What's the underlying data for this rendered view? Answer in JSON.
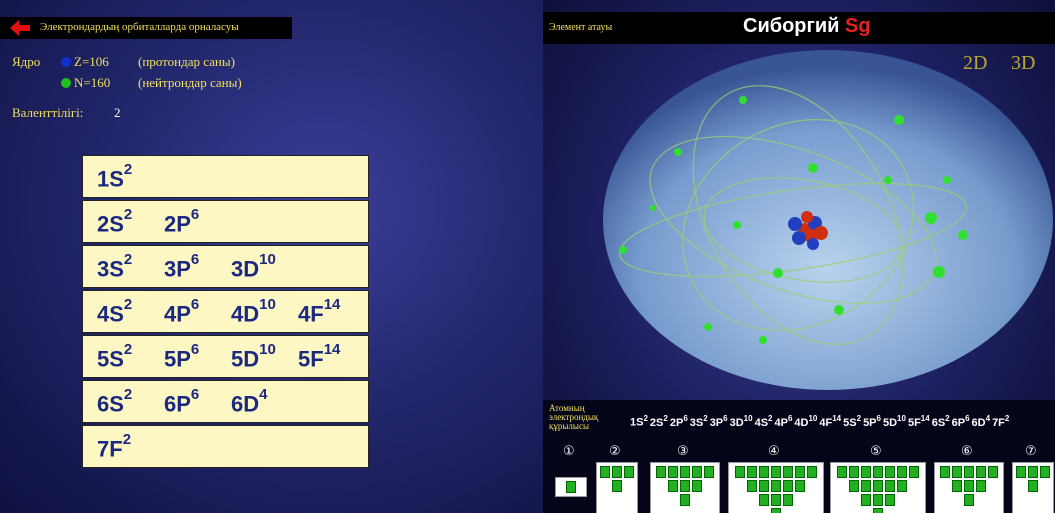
{
  "header": {
    "back_title": "Электрондардың орбиталларда орналасуы"
  },
  "nucleus": {
    "label": "Ядро",
    "protons": "Z=106",
    "protons_note": "(протондар саны)",
    "neutrons": "N=160",
    "neutrons_note": "(нейтрондар саны)"
  },
  "valence": {
    "label": "Валенттілігі:",
    "value": "2"
  },
  "orbitals": [
    [
      {
        "label": "1S",
        "sup": "2"
      }
    ],
    [
      {
        "label": "2S",
        "sup": "2"
      },
      {
        "label": "2P",
        "sup": "6"
      }
    ],
    [
      {
        "label": "3S",
        "sup": "2"
      },
      {
        "label": "3P",
        "sup": "6"
      },
      {
        "label": "3D",
        "sup": "10"
      }
    ],
    [
      {
        "label": "4S",
        "sup": "2"
      },
      {
        "label": "4P",
        "sup": "6"
      },
      {
        "label": "4D",
        "sup": "10"
      },
      {
        "label": "4F",
        "sup": "14"
      }
    ],
    [
      {
        "label": "5S",
        "sup": "2"
      },
      {
        "label": "5P",
        "sup": "6"
      },
      {
        "label": "5D",
        "sup": "10"
      },
      {
        "label": "5F",
        "sup": "14"
      }
    ],
    [
      {
        "label": "6S",
        "sup": "2"
      },
      {
        "label": "6P",
        "sup": "6"
      },
      {
        "label": "6D",
        "sup": "4"
      }
    ],
    [
      {
        "label": "7F",
        "sup": "2"
      }
    ]
  ],
  "element": {
    "caption": "Элемент атауы",
    "name": "Сиборгий",
    "symbol": "Sg"
  },
  "view_buttons": [
    "2D",
    "3D"
  ],
  "structure": {
    "label": "Атомның электрондық құрылысы",
    "config": [
      {
        "label": "1S",
        "sup": "2"
      },
      {
        "label": "2S",
        "sup": "2"
      },
      {
        "label": "2P",
        "sup": "6"
      },
      {
        "label": "3S",
        "sup": "2"
      },
      {
        "label": "3P",
        "sup": "6"
      },
      {
        "label": "3D",
        "sup": "10"
      },
      {
        "label": "4S",
        "sup": "2"
      },
      {
        "label": "4P",
        "sup": "6"
      },
      {
        "label": "4D",
        "sup": "10"
      },
      {
        "label": "4F",
        "sup": "14"
      },
      {
        "label": "5S",
        "sup": "2"
      },
      {
        "label": "5P",
        "sup": "6"
      },
      {
        "label": "5D",
        "sup": "10"
      },
      {
        "label": "5F",
        "sup": "14"
      },
      {
        "label": "6S",
        "sup": "2"
      },
      {
        "label": "6P",
        "sup": "6"
      },
      {
        "label": "6D",
        "sup": "4"
      },
      {
        "label": "7F",
        "sup": "2"
      }
    ],
    "shells": [
      "①",
      "②",
      "③",
      "④",
      "⑤",
      "⑥",
      "⑦"
    ]
  }
}
